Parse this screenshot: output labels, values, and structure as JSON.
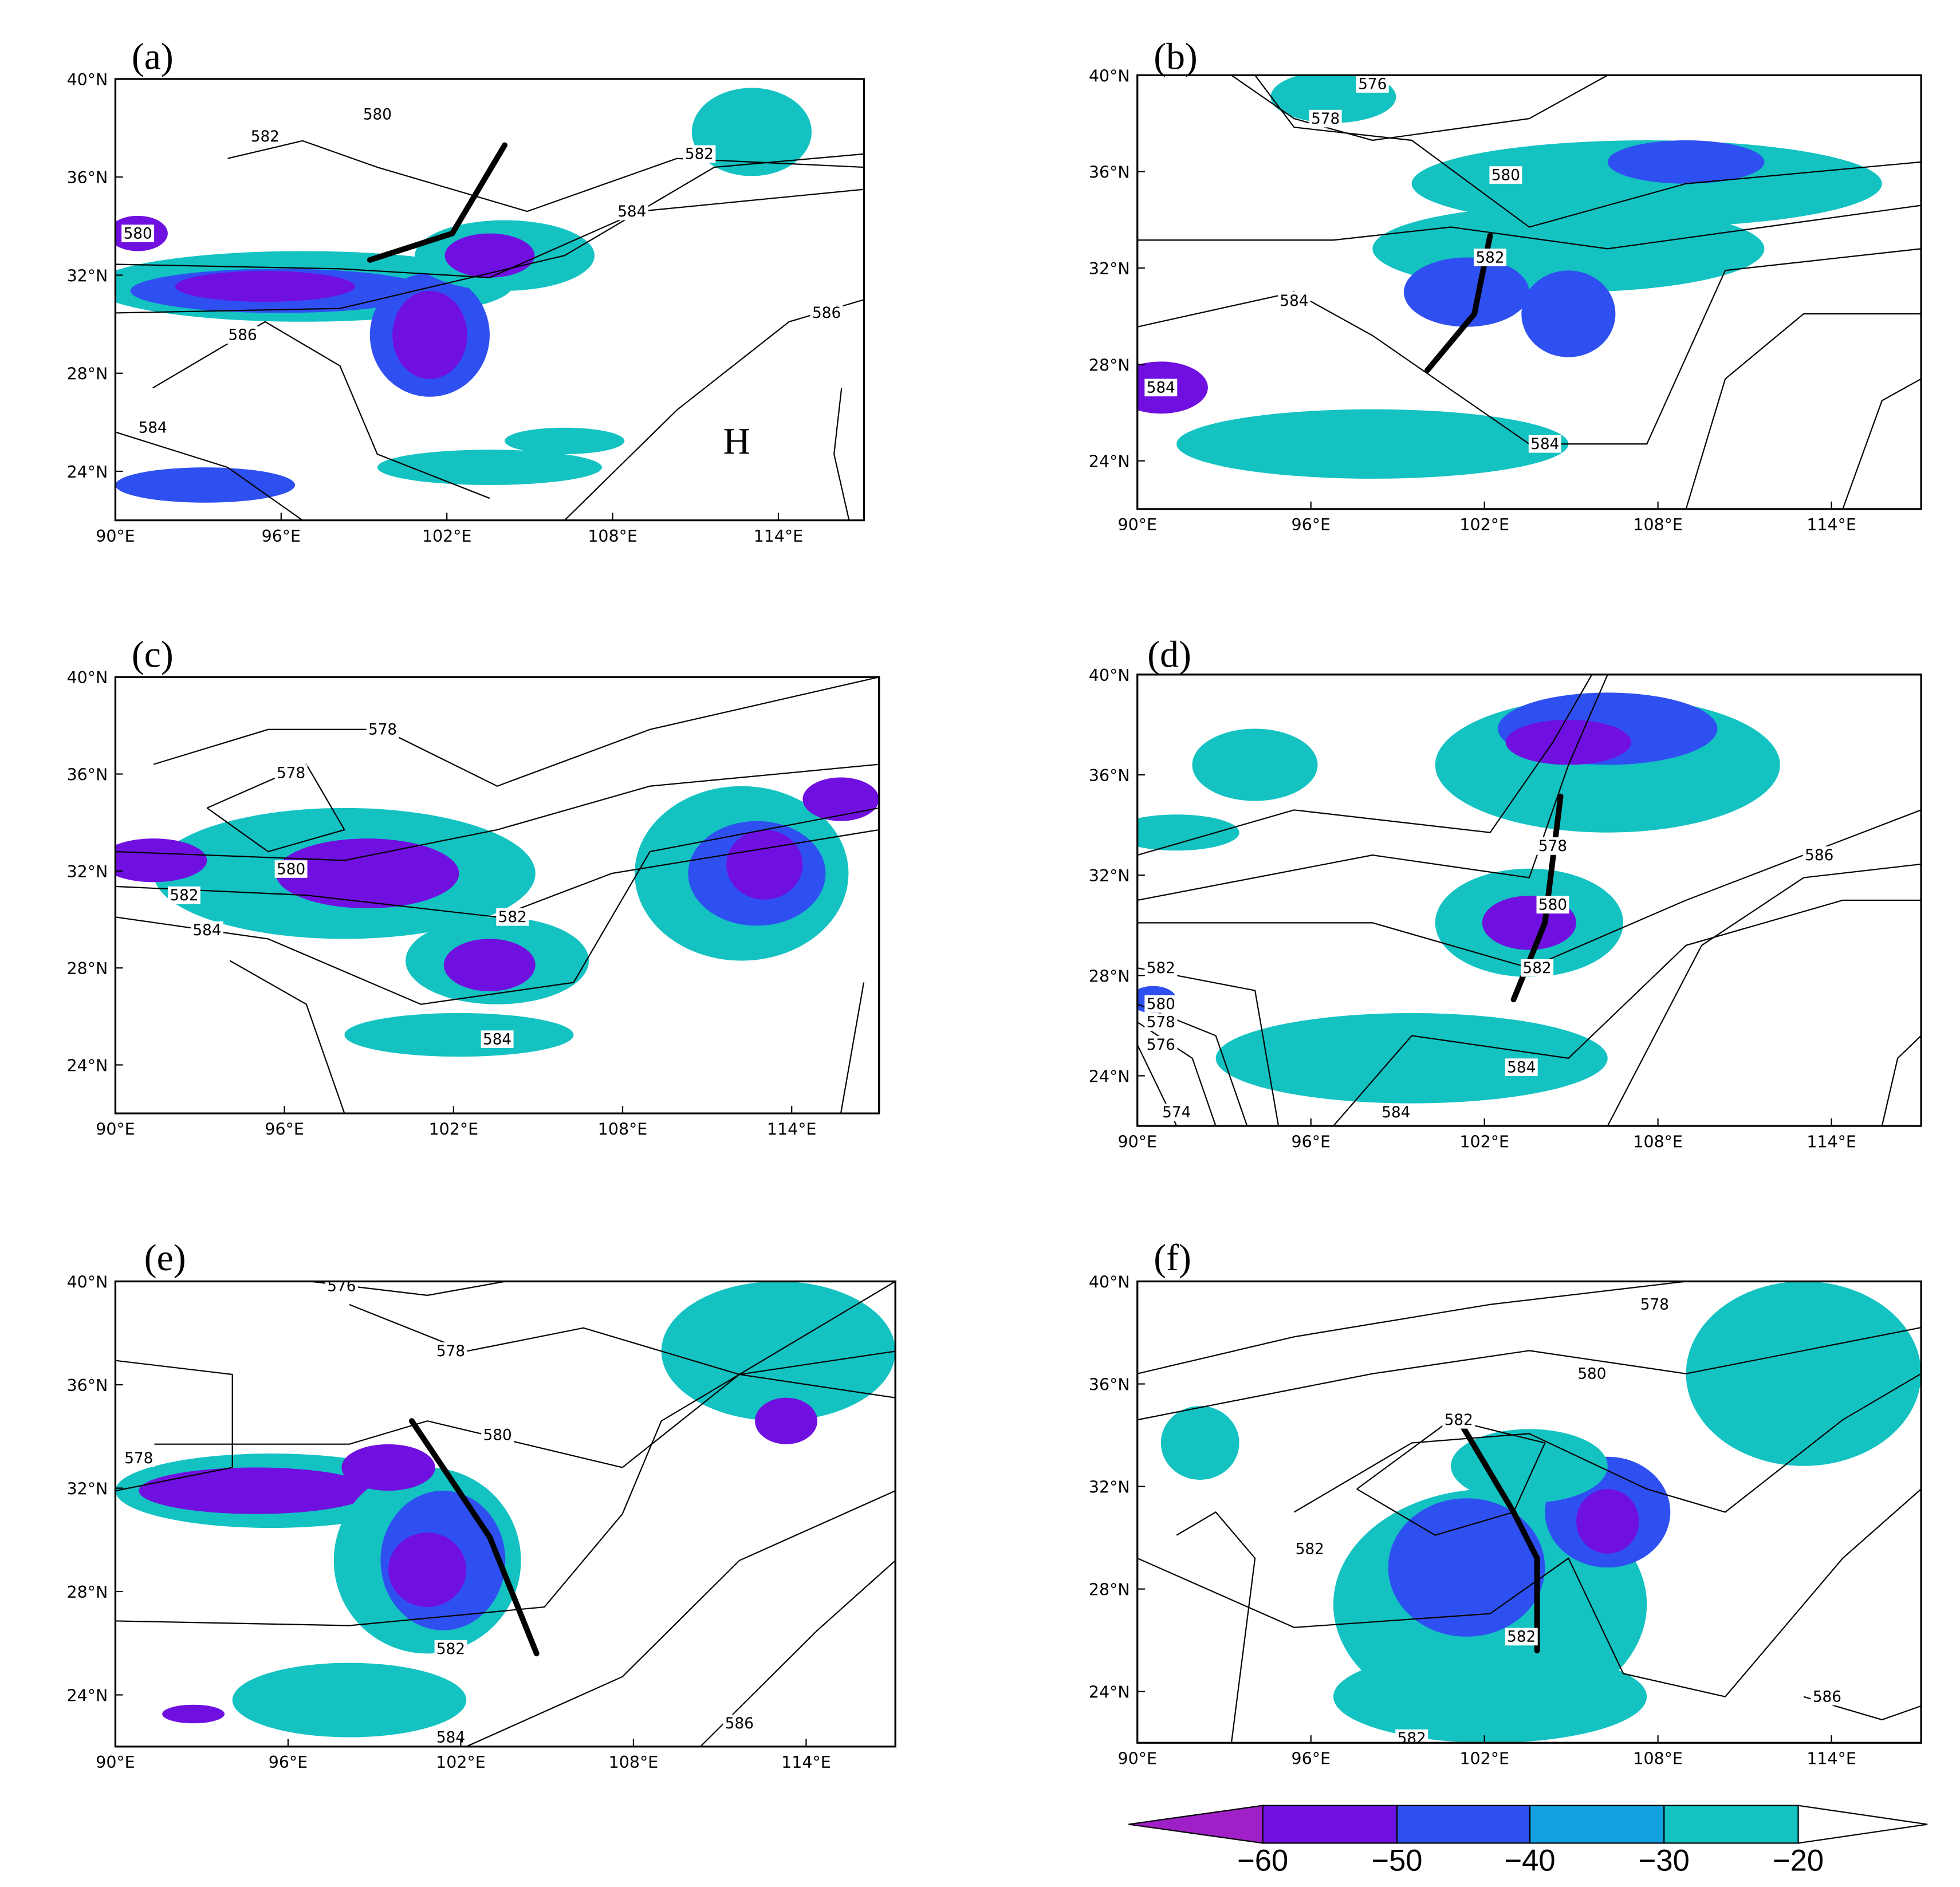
{
  "panels": [
    {
      "label": "(a)",
      "contour_labels": [
        "580",
        "582",
        "582",
        "584",
        "586",
        "586",
        "580",
        "584"
      ],
      "marker": "H"
    },
    {
      "label": "(b)",
      "contour_labels": [
        "576",
        "578",
        "580",
        "582",
        "584",
        "584",
        "584"
      ]
    },
    {
      "label": "(c)",
      "contour_labels": [
        "578",
        "578",
        "580",
        "582",
        "582",
        "584",
        "584"
      ]
    },
    {
      "label": "(d)",
      "contour_labels": [
        "578",
        "580",
        "582",
        "586",
        "584",
        "584",
        "582",
        "580",
        "578",
        "576",
        "574"
      ]
    },
    {
      "label": "(e)",
      "contour_labels": [
        "576",
        "578",
        "580",
        "578",
        "582",
        "584",
        "586"
      ]
    },
    {
      "label": "(f)",
      "contour_labels": [
        "578",
        "580",
        "582",
        "582",
        "582",
        "586",
        "582"
      ]
    }
  ],
  "axes": {
    "xticks": [
      "90°E",
      "96°E",
      "102°E",
      "108°E",
      "114°E"
    ],
    "yticks": [
      "40°N",
      "36°N",
      "32°N",
      "28°N",
      "24°N"
    ]
  },
  "colorbar": {
    "ticks": [
      "−60",
      "−50",
      "−40",
      "−30",
      "−20"
    ]
  }
}
